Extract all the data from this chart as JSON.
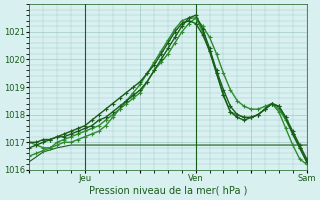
{
  "title": "",
  "xlabel": "Pression niveau de la mer( hPa )",
  "ylabel": "",
  "bg_color": "#d8f0f0",
  "plot_bg_color": "#d8f0f0",
  "grid_color": "#a0c8c8",
  "ylim": [
    1016.0,
    1022.0
  ],
  "yticks": [
    1016,
    1017,
    1018,
    1019,
    1020,
    1021
  ],
  "xtick_labels": [
    "",
    "Jeu",
    "",
    "Ven",
    "",
    "Sam"
  ],
  "xtick_positions": [
    0,
    24,
    48,
    72,
    96,
    120
  ],
  "series": {
    "line1": {
      "x": [
        0,
        6,
        12,
        18,
        24,
        30,
        36,
        42,
        48,
        54,
        60,
        66,
        72,
        78,
        84,
        90,
        96,
        102,
        108,
        114,
        120
      ],
      "y": [
        1016.3,
        1016.65,
        1016.8,
        1016.9,
        1016.9,
        1016.9,
        1016.9,
        1016.9,
        1016.9,
        1016.9,
        1016.9,
        1016.9,
        1016.9,
        1016.9,
        1016.9,
        1016.9,
        1016.9,
        1016.9,
        1016.9,
        1016.9,
        1016.9
      ],
      "color": "#1a5c1a",
      "lw": 0.8,
      "has_marker": false
    },
    "line2": {
      "x": [
        0,
        3,
        6,
        9,
        12,
        15,
        18,
        21,
        24,
        27,
        30,
        33,
        36,
        39,
        42,
        45,
        48,
        51,
        54,
        57,
        60,
        63,
        66,
        69,
        72,
        75,
        78,
        81,
        84,
        87,
        90,
        93,
        96,
        99,
        102,
        105,
        108,
        111,
        114,
        117,
        120
      ],
      "y": [
        1016.5,
        1016.6,
        1016.7,
        1016.8,
        1017.0,
        1017.1,
        1017.2,
        1017.3,
        1017.4,
        1017.5,
        1017.6,
        1017.8,
        1018.0,
        1018.2,
        1018.4,
        1018.6,
        1018.8,
        1019.2,
        1019.6,
        1019.9,
        1020.2,
        1020.6,
        1021.0,
        1021.3,
        1021.5,
        1021.2,
        1020.8,
        1020.2,
        1019.5,
        1018.9,
        1018.5,
        1018.3,
        1018.2,
        1018.2,
        1018.3,
        1018.4,
        1018.1,
        1017.5,
        1016.9,
        1016.4,
        1016.2
      ],
      "color": "#2d8c2d",
      "lw": 1.0,
      "has_marker": true
    },
    "line3": {
      "x": [
        0,
        3,
        6,
        9,
        12,
        15,
        18,
        21,
        24,
        27,
        30,
        33,
        36,
        39,
        42,
        45,
        48,
        51,
        54,
        57,
        60,
        63,
        66,
        69,
        72,
        75,
        78,
        81,
        84,
        87,
        90,
        93,
        96,
        99,
        102,
        105,
        108,
        111,
        114,
        117,
        120
      ],
      "y": [
        1017.0,
        1016.9,
        1016.8,
        1016.8,
        1016.9,
        1017.0,
        1017.0,
        1017.1,
        1017.2,
        1017.3,
        1017.4,
        1017.6,
        1017.9,
        1018.2,
        1018.5,
        1018.8,
        1019.1,
        1019.5,
        1019.9,
        1020.3,
        1020.7,
        1021.1,
        1021.4,
        1021.5,
        1021.5,
        1021.0,
        1020.3,
        1019.5,
        1018.7,
        1018.1,
        1018.0,
        1017.9,
        1017.9,
        1018.0,
        1018.2,
        1018.4,
        1018.2,
        1017.8,
        1017.3,
        1016.8,
        1016.3
      ],
      "color": "#2d8c2d",
      "lw": 1.0,
      "has_marker": true
    },
    "line4": {
      "x": [
        0,
        3,
        6,
        9,
        12,
        15,
        18,
        21,
        24,
        27,
        30,
        33,
        36,
        39,
        42,
        45,
        48,
        51,
        54,
        57,
        60,
        63,
        66,
        69,
        72,
        75,
        78,
        81,
        84,
        87,
        90,
        93,
        96,
        99,
        102,
        105,
        108,
        111,
        114,
        117,
        120
      ],
      "y": [
        1016.8,
        1016.9,
        1017.0,
        1017.1,
        1017.2,
        1017.3,
        1017.4,
        1017.5,
        1017.6,
        1017.8,
        1018.0,
        1018.2,
        1018.4,
        1018.6,
        1018.8,
        1019.0,
        1019.2,
        1019.5,
        1019.8,
        1020.2,
        1020.6,
        1021.0,
        1021.3,
        1021.4,
        1021.3,
        1020.9,
        1020.3,
        1019.5,
        1018.7,
        1018.1,
        1017.9,
        1017.8,
        1017.9,
        1018.0,
        1018.2,
        1018.4,
        1018.3,
        1017.9,
        1017.4,
        1016.9,
        1016.4
      ],
      "color": "#1a5c1a",
      "lw": 1.0,
      "has_marker": true
    },
    "line5": {
      "x": [
        0,
        3,
        6,
        9,
        12,
        15,
        18,
        21,
        24,
        27,
        30,
        33,
        36,
        39,
        42,
        45,
        48,
        51,
        54,
        57,
        60,
        63,
        66,
        69,
        72,
        75,
        78,
        81,
        84,
        87,
        90,
        93,
        96,
        99,
        102,
        105,
        108,
        111,
        114,
        117,
        120
      ],
      "y": [
        1017.0,
        1017.0,
        1017.1,
        1017.1,
        1017.2,
        1017.2,
        1017.3,
        1017.4,
        1017.5,
        1017.6,
        1017.8,
        1017.9,
        1018.1,
        1018.3,
        1018.5,
        1018.7,
        1018.9,
        1019.2,
        1019.6,
        1020.0,
        1020.4,
        1020.8,
        1021.2,
        1021.5,
        1021.6,
        1021.1,
        1020.4,
        1019.6,
        1018.9,
        1018.3,
        1018.0,
        1017.9,
        1017.9,
        1018.0,
        1018.2,
        1018.4,
        1018.3,
        1017.9,
        1017.3,
        1016.8,
        1016.3
      ],
      "color": "#1a5c1a",
      "lw": 1.0,
      "has_marker": true
    }
  },
  "vlines": [
    24,
    72,
    120
  ]
}
